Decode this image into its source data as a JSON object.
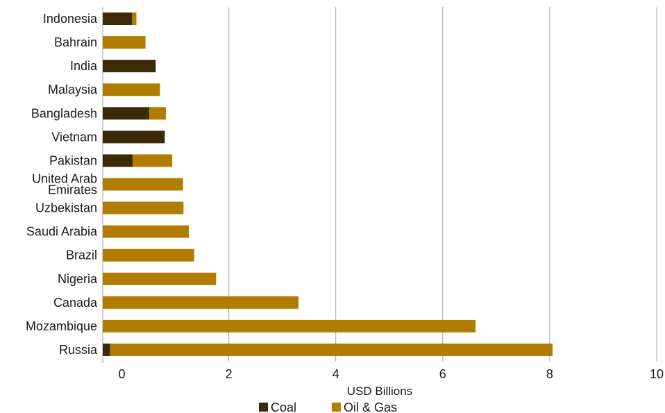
{
  "chart_data": {
    "type": "bar",
    "orientation": "horizontal",
    "stacked": true,
    "title": "",
    "xlabel": "USD Billions",
    "ylabel": "",
    "xlim": [
      -0.3,
      10
    ],
    "x_ticks": [
      0,
      2,
      4,
      6,
      8,
      10
    ],
    "x_tick_labels": [
      "0",
      "2",
      "4",
      "6",
      "8",
      "10"
    ],
    "grid": "vertical",
    "legend_position": "bottom",
    "categories": [
      "Indonesia",
      "Bahrain",
      "India",
      "Malaysia",
      "Bangladesh",
      "Vietnam",
      "Pakistan",
      "United Arab Emirates",
      "Uzbekistan",
      "Saudi Arabia",
      "Brazil",
      "Nigeria",
      "Canada",
      "Mozambique",
      "Russia"
    ],
    "category_display_lines": [
      [
        "Indonesia"
      ],
      [
        "Bahrain"
      ],
      [
        "India"
      ],
      [
        "Malaysia"
      ],
      [
        "Bangladesh"
      ],
      [
        "Vietnam"
      ],
      [
        "Pakistan"
      ],
      [
        "United Arab",
        "Emirates"
      ],
      [
        "Uzbekistan"
      ],
      [
        "Saudi Arabia"
      ],
      [
        "Brazil"
      ],
      [
        "Nigeria"
      ],
      [
        "Canada"
      ],
      [
        "Mozambique"
      ],
      [
        "Russia"
      ]
    ],
    "series": [
      {
        "name": "Coal",
        "color": "#3a2a0a",
        "values": [
          0.55,
          0,
          0.99,
          0,
          0.87,
          1.16,
          0.56,
          0,
          0,
          0,
          0,
          0,
          0,
          0,
          0.14
        ]
      },
      {
        "name": "Oil & Gas",
        "color": "#b07d00",
        "values": [
          0.08,
          0.8,
          0,
          1.07,
          0.31,
          0,
          0.74,
          1.5,
          1.51,
          1.61,
          1.71,
          2.12,
          3.66,
          6.97,
          8.27
        ]
      }
    ]
  }
}
